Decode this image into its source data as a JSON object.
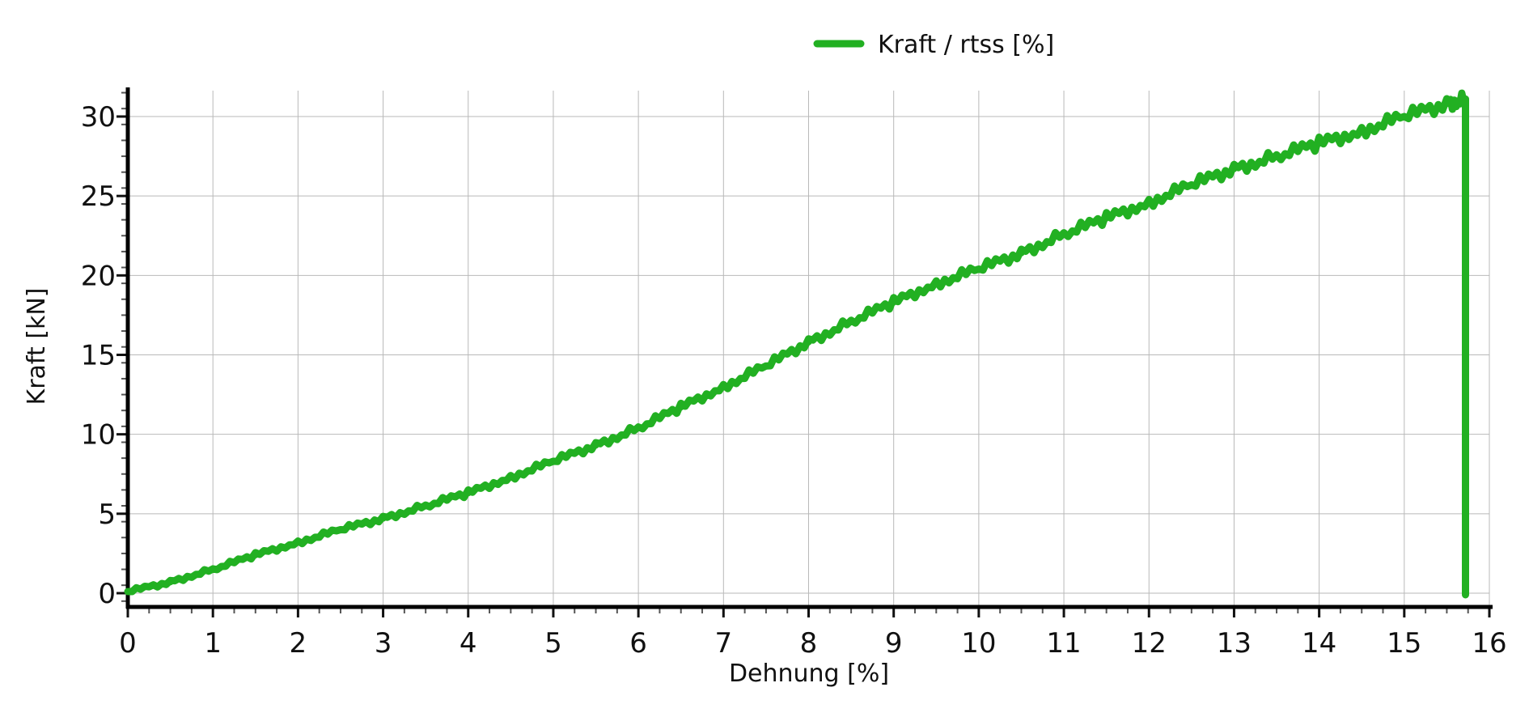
{
  "chart_data": {
    "type": "line",
    "title": "",
    "xlabel": "Dehnung [%]",
    "ylabel": "Kraft [kN]",
    "xlim": [
      -0.3,
      16
    ],
    "ylim": [
      -0.8,
      32
    ],
    "xticks": [
      0,
      1,
      2,
      3,
      4,
      5,
      6,
      7,
      8,
      9,
      10,
      11,
      12,
      13,
      14,
      15,
      16
    ],
    "yticks": [
      0,
      5,
      10,
      15,
      20,
      25,
      30
    ],
    "grid": true,
    "legend_position": "top-center",
    "series": [
      {
        "name": "Kraft / rtss [%]",
        "color": "#22b022",
        "x": [
          0,
          0.5,
          1,
          1.5,
          2,
          2.5,
          3,
          3.5,
          4,
          4.5,
          5,
          5.5,
          6,
          6.5,
          7,
          7.5,
          8,
          8.5,
          9,
          9.5,
          10,
          10.5,
          11,
          11.5,
          12,
          12.5,
          13,
          13.5,
          14,
          14.5,
          15,
          15.5,
          15.72,
          15.72
        ],
        "y": [
          0.1,
          0.7,
          1.5,
          2.4,
          3.2,
          4.0,
          4.7,
          5.5,
          6.3,
          7.3,
          8.3,
          9.3,
          10.4,
          11.7,
          13.0,
          14.3,
          15.8,
          17.1,
          18.3,
          19.5,
          20.4,
          21.4,
          22.6,
          23.6,
          24.6,
          25.7,
          26.7,
          27.5,
          28.3,
          29.1,
          30.0,
          30.8,
          31.1,
          -0.1
        ]
      }
    ]
  }
}
